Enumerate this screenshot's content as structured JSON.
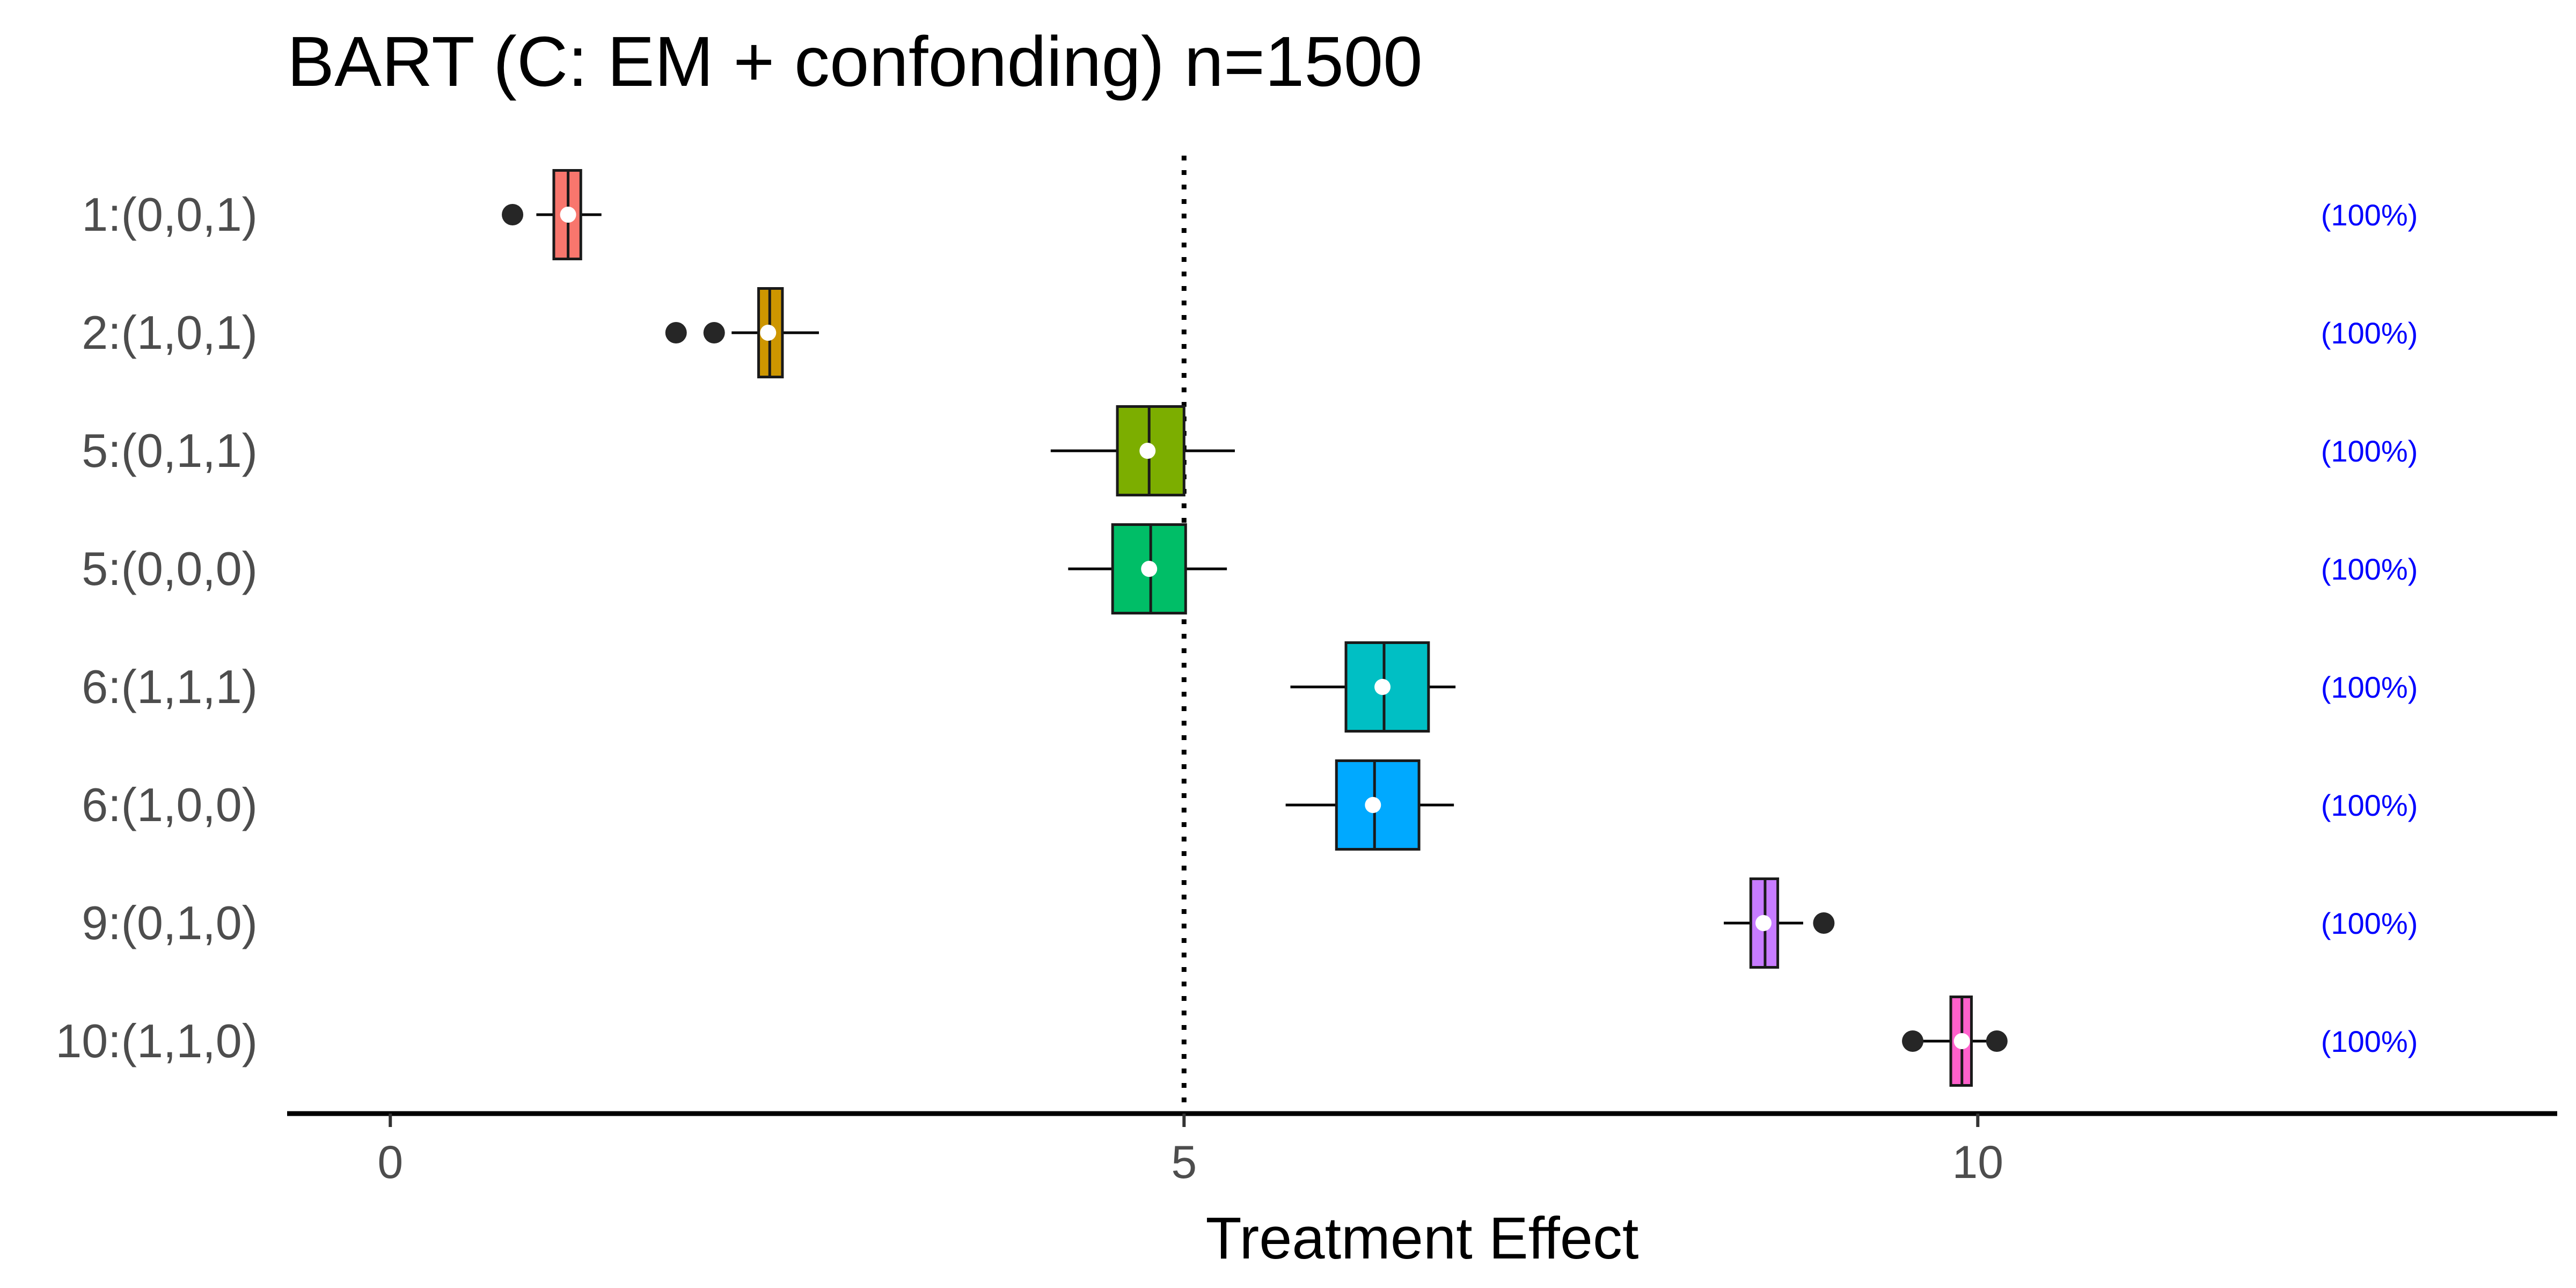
{
  "chart_data": {
    "type": "boxplot",
    "title": "BART (C: EM + confonding) n=1500",
    "xlabel": "Treatment Effect",
    "ylabel": "",
    "xlim": [
      -0.65,
      13.65
    ],
    "xticks": [
      0,
      5,
      10
    ],
    "reference_line": 5,
    "annotation_color": "#0000ff",
    "groups": [
      {
        "label": "1:(0,0,1)",
        "color": "#F8766D",
        "whisker_low": 0.92,
        "q1": 1.03,
        "median": 1.12,
        "q3": 1.2,
        "whisker_high": 1.33,
        "mean": 1.12,
        "outliers": [
          0.77
        ],
        "annotation": "(100%)"
      },
      {
        "label": "2:(1,0,1)",
        "color": "#CD9600",
        "whisker_low": 2.15,
        "q1": 2.32,
        "median": 2.39,
        "q3": 2.47,
        "whisker_high": 2.7,
        "mean": 2.38,
        "outliers": [
          1.8,
          2.04
        ],
        "annotation": "(100%)"
      },
      {
        "label": "5:(0,1,1)",
        "color": "#7CAE00",
        "whisker_low": 4.16,
        "q1": 4.58,
        "median": 4.78,
        "q3": 5.0,
        "whisker_high": 5.32,
        "mean": 4.77,
        "outliers": [],
        "annotation": "(100%)"
      },
      {
        "label": "5:(0,0,0)",
        "color": "#00BE67",
        "whisker_low": 4.27,
        "q1": 4.55,
        "median": 4.79,
        "q3": 5.01,
        "whisker_high": 5.27,
        "mean": 4.78,
        "outliers": [],
        "annotation": "(100%)"
      },
      {
        "label": "6:(1,1,1)",
        "color": "#00BFC4",
        "whisker_low": 5.67,
        "q1": 6.02,
        "median": 6.26,
        "q3": 6.54,
        "whisker_high": 6.71,
        "mean": 6.25,
        "outliers": [],
        "annotation": "(100%)"
      },
      {
        "label": "6:(1,0,0)",
        "color": "#00A9FF",
        "whisker_low": 5.64,
        "q1": 5.96,
        "median": 6.2,
        "q3": 6.48,
        "whisker_high": 6.7,
        "mean": 6.19,
        "outliers": [],
        "annotation": "(100%)"
      },
      {
        "label": "9:(0,1,0)",
        "color": "#C77CFF",
        "whisker_low": 8.4,
        "q1": 8.57,
        "median": 8.66,
        "q3": 8.74,
        "whisker_high": 8.9,
        "mean": 8.65,
        "outliers": [
          9.03
        ],
        "annotation": "(100%)"
      },
      {
        "label": "10:(1,1,0)",
        "color": "#FF61CC",
        "whisker_low": 9.65,
        "q1": 9.83,
        "median": 9.9,
        "q3": 9.96,
        "whisker_high": 10.12,
        "mean": 9.9,
        "outliers": [
          9.59,
          10.12
        ],
        "annotation": "(100%)"
      }
    ]
  }
}
